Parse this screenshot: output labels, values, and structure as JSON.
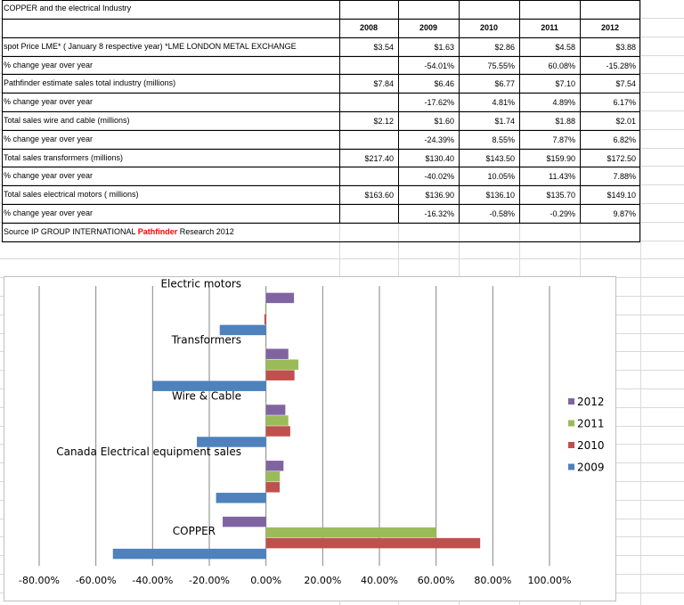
{
  "table": {
    "title": "COPPER and the electrical Industry",
    "years": [
      "2008",
      "2009",
      "2010",
      "2011",
      "2012"
    ],
    "rows": [
      {
        "label": "spot Price LME* ( January 8 respective year) *LME LONDON METAL EXCHANGE",
        "values": [
          "$3.54",
          "$1.63",
          "$2.86",
          "$4.58",
          "$3.88"
        ]
      },
      {
        "label": "% change year over year",
        "values": [
          "",
          "-54.01%",
          "75.55%",
          "60.08%",
          "-15.28%"
        ]
      },
      {
        "label": "Pathfinder estimate sales total industry (millions)",
        "values": [
          "$7.84",
          "$6.46",
          "$6.77",
          "$7.10",
          "$7.54"
        ]
      },
      {
        "label": "% change year over year",
        "values": [
          "",
          "-17.62%",
          "4.81%",
          "4.89%",
          "6.17%"
        ]
      },
      {
        "label": "Total sales wire and cable (millions)",
        "values": [
          "$2.12",
          "$1.60",
          "$1.74",
          "$1.88",
          "$2.01"
        ]
      },
      {
        "label": "% change year over year",
        "values": [
          "",
          "-24.39%",
          "8.55%",
          "7.87%",
          "6.82%"
        ]
      },
      {
        "label": "Total sales transformers (millions)",
        "values": [
          "$217.40",
          "$130.40",
          "$143.50",
          "$159.90",
          "$172.50"
        ]
      },
      {
        "label": "% change year over year",
        "values": [
          "",
          "-40.02%",
          "10.05%",
          "11.43%",
          "7.88%"
        ]
      },
      {
        "label": "Total sales electrical motors ( millions)",
        "values": [
          "$163.60",
          "$136.90",
          "$136.10",
          "$135.70",
          "$149.10"
        ]
      },
      {
        "label": "% change year over year",
        "values": [
          "",
          "-16.32%",
          "-0.58%",
          "-0.29%",
          "9.87%"
        ]
      }
    ],
    "source_prefix": "Source IP GROUP INTERNATIONAL ",
    "source_brand": "Pathfinder",
    "source_suffix": " Research 2012",
    "source_brand_color": "#ff0000"
  },
  "chart_data": {
    "type": "bar",
    "orientation": "horizontal",
    "categories": [
      "COPPER",
      "Canada Electrical equipment sales",
      "Wire & Cable",
      "Transformers",
      "Electric motors"
    ],
    "series": [
      {
        "name": "2009",
        "color": "#4f81bd",
        "values": [
          -54.01,
          -17.62,
          -24.39,
          -40.02,
          -16.32
        ]
      },
      {
        "name": "2010",
        "color": "#c0504d",
        "values": [
          75.55,
          4.81,
          8.55,
          10.05,
          -0.58
        ]
      },
      {
        "name": "2011",
        "color": "#9bbb59",
        "values": [
          60.08,
          4.89,
          7.87,
          11.43,
          -0.29
        ]
      },
      {
        "name": "2012",
        "color": "#8064a2",
        "values": [
          -15.28,
          6.17,
          6.82,
          7.88,
          9.87
        ]
      }
    ],
    "xlim": [
      -80,
      100
    ],
    "xticks": [
      "-80.00%",
      "-60.00%",
      "-40.00%",
      "-20.00%",
      "0.00%",
      "20.00%",
      "40.00%",
      "60.00%",
      "80.00%",
      "100.00%"
    ],
    "grid": true,
    "legend": "right",
    "legend_order": [
      "2012",
      "2011",
      "2010",
      "2009"
    ]
  }
}
